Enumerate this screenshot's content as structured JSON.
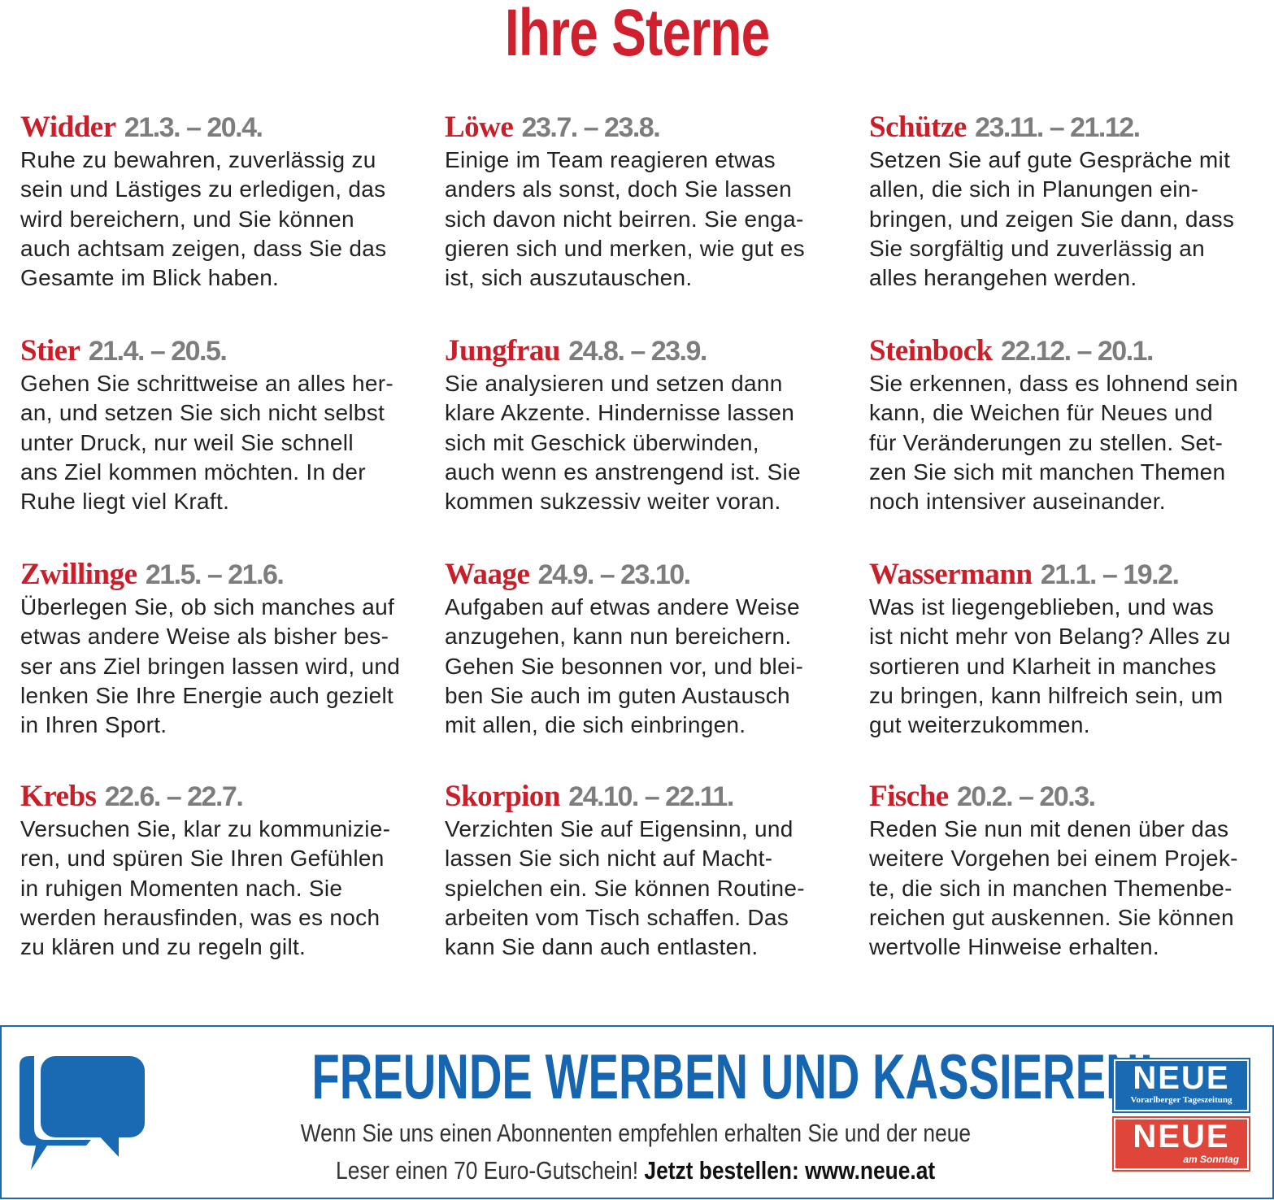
{
  "title": "Ihre Sterne",
  "signs": [
    {
      "name": "Widder",
      "date": "21.3. – 20.4.",
      "text": "Ruhe zu bewahren, zuverlässig zu\nsein und Lästiges zu erledigen, das\nwird bereichern, und Sie können\nauch achtsam zeigen, dass Sie das\nGesamte im Blick haben."
    },
    {
      "name": "Stier",
      "date": "21.4. – 20.5.",
      "text": "Gehen Sie schrittweise an alles her-\nan, und setzen Sie sich nicht selbst\nunter Druck, nur weil Sie schnell\nans Ziel kommen möchten. In der\nRuhe liegt viel Kraft."
    },
    {
      "name": "Zwillinge",
      "date": "21.5. – 21.6.",
      "text": "Überlegen Sie, ob sich manches auf\netwas andere Weise als bisher bes-\nser ans Ziel bringen lassen wird, und\nlenken Sie Ihre Energie auch gezielt\nin Ihren Sport."
    },
    {
      "name": "Krebs",
      "date": "22.6. – 22.7.",
      "text": "Versuchen Sie, klar zu kommunizie-\nren, und spüren Sie Ihren Gefühlen\nin ruhigen Momenten nach. Sie\nwerden herausfinden, was es noch\nzu klären und zu regeln gilt."
    },
    {
      "name": "Löwe",
      "date": "23.7. – 23.8.",
      "text": "Einige im Team reagieren etwas\nanders als sonst, doch Sie lassen\nsich davon nicht beirren. Sie enga-\ngieren sich und merken, wie gut es\nist, sich auszutauschen."
    },
    {
      "name": "Jungfrau",
      "date": "24.8. – 23.9.",
      "text": "Sie analysieren und setzen dann\nklare Akzente. Hindernisse lassen\nsich mit Geschick überwinden,\nauch wenn es anstrengend ist. Sie\nkommen sukzessiv weiter voran."
    },
    {
      "name": "Waage",
      "date": "24.9. – 23.10.",
      "text": "Aufgaben auf etwas andere Weise\nanzugehen, kann nun bereichern.\nGehen Sie besonnen vor, und blei-\nben Sie auch im guten Austausch\nmit allen, die sich einbringen."
    },
    {
      "name": "Skorpion",
      "date": "24.10. – 22.11.",
      "text": "Verzichten Sie auf Eigensinn, und\nlassen Sie sich nicht auf Macht-\nspielchen ein. Sie können Routine-\narbeiten vom Tisch schaffen. Das\nkann Sie dann auch entlasten."
    },
    {
      "name": "Schütze",
      "date": "23.11. – 21.12.",
      "text": "Setzen Sie auf gute Gespräche mit\nallen, die sich in Planungen ein-\nbringen, und zeigen Sie dann, dass\nSie sorgfältig und zuverlässig an\nalles herangehen werden."
    },
    {
      "name": "Steinbock",
      "date": "22.12. – 20.1.",
      "text": "Sie erkennen, dass es lohnend sein\nkann, die Weichen für Neues und\nfür Veränderungen zu stellen. Set-\nzen Sie sich mit manchen Themen\nnoch intensiver auseinander."
    },
    {
      "name": "Wassermann",
      "date": "21.1. – 19.2.",
      "text": "Was ist liegengeblieben, und was\nist nicht mehr von Belang? Alles zu\nsortieren und Klarheit in manches\nzu bringen, kann hilfreich sein, um\ngut weiterzukommen."
    },
    {
      "name": "Fische",
      "date": "20.2. – 20.3.",
      "text": "Reden Sie nun mit denen über das\nweitere Vorgehen bei einem Projek-\nte, die sich in manchen Themenbe-\nreichen gut auskennen. Sie können\nwertvolle Hinweise erhalten."
    }
  ],
  "banner": {
    "icon": "speech-bubbles-icon",
    "headline": "FREUNDE WERBEN UND KASSIEREN!",
    "line1": "Wenn Sie uns einen Abonnenten empfehlen erhalten Sie und der neue",
    "line2": "Leser einen 70 Euro-Gutschein! ",
    "cta": "Jetzt bestellen: www.neue.at",
    "logos": [
      {
        "big": "NEUE",
        "small": "Vorarlberger Tageszeitung"
      },
      {
        "big": "NEUE",
        "small": "am Sonntag"
      }
    ]
  },
  "colors": {
    "red": "#d0202e",
    "gray": "#7d7d7d",
    "blue": "#1565b0"
  }
}
